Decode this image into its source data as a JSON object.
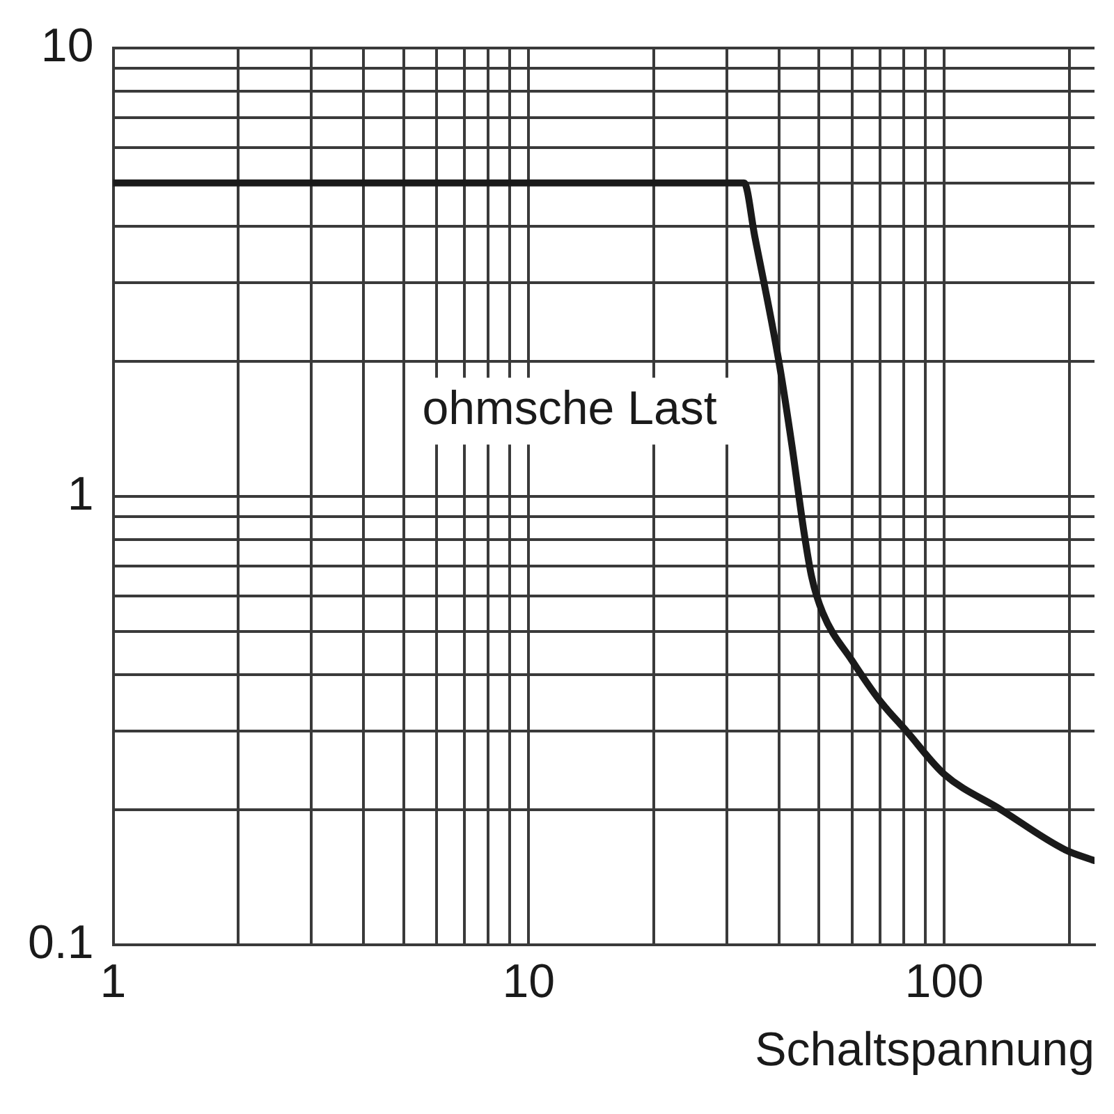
{
  "chart_data": {
    "type": "line",
    "xlabel": "Schaltspannung",
    "x": [
      1,
      33,
      35,
      40,
      43,
      46,
      48,
      51,
      60,
      70,
      81,
      100,
      137,
      195,
      230
    ],
    "series": [
      {
        "name": "ohmsche Last",
        "color": "#1a1a1a",
        "values": [
          5,
          5,
          3.8,
          2,
          1.3,
          0.83,
          0.66,
          0.55,
          0.43,
          0.35,
          0.3,
          0.24,
          0.2,
          0.163,
          0.154
        ]
      }
    ],
    "xlim": [
      1,
      230
    ],
    "xticks": [
      1,
      {
        "value": 2,
        "label": null
      },
      {
        "value": 3,
        "label": null
      },
      {
        "value": 4,
        "label": null
      },
      {
        "value": 5,
        "label": null
      },
      {
        "value": 6,
        "label": null
      },
      {
        "value": 7,
        "label": null
      },
      {
        "value": 8,
        "label": null
      },
      {
        "value": 9,
        "label": null
      },
      10,
      {
        "value": 20,
        "label": null
      },
      {
        "value": 30,
        "label": null
      },
      {
        "value": 40,
        "label": null
      },
      {
        "value": 50,
        "label": null
      },
      {
        "value": 60,
        "label": null
      },
      {
        "value": 70,
        "label": null
      },
      {
        "value": 80,
        "label": null
      },
      {
        "value": 90,
        "label": null
      },
      100,
      {
        "value": 200,
        "label": null
      }
    ],
    "ylim": [
      0.1,
      10
    ],
    "yticks": [
      0.1,
      {
        "value": 0.2,
        "label": null
      },
      {
        "value": 0.3,
        "label": null
      },
      {
        "value": 0.4,
        "label": null
      },
      {
        "value": 0.5,
        "label": null
      },
      {
        "value": 0.6,
        "label": null
      },
      {
        "value": 0.7,
        "label": null
      },
      {
        "value": 0.8,
        "label": null
      },
      {
        "value": 0.9,
        "label": null
      },
      1,
      {
        "value": 2,
        "label": null
      },
      {
        "value": 3,
        "label": null
      },
      {
        "value": 4,
        "label": null
      },
      {
        "value": 5,
        "label": null
      },
      {
        "value": 6,
        "label": null
      },
      {
        "value": 7,
        "label": null
      },
      {
        "value": 8,
        "label": null
      },
      {
        "value": 9,
        "label": null
      },
      10
    ],
    "log": "xy",
    "grid": true
  }
}
